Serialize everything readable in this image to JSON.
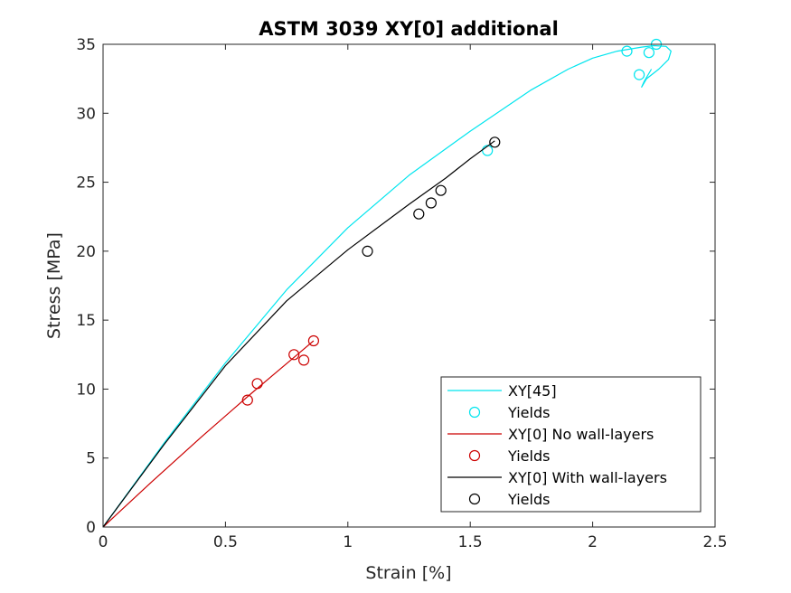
{
  "chart_data": {
    "type": "line",
    "title": "ASTM 3039 XY[0] additional",
    "xlabel": "Strain [%]",
    "ylabel": "Stress [MPa]",
    "xlim": [
      0,
      2.5
    ],
    "ylim": [
      0,
      35
    ],
    "xticks": [
      0,
      0.5,
      1,
      1.5,
      2,
      2.5
    ],
    "xtick_labels": [
      "0",
      "0.5",
      "1",
      "1.5",
      "2",
      "2.5"
    ],
    "yticks": [
      0,
      5,
      10,
      15,
      20,
      25,
      30,
      35
    ],
    "ytick_labels": [
      "0",
      "5",
      "10",
      "15",
      "20",
      "25",
      "30",
      "35"
    ],
    "grid": false,
    "legend_position": "bottom-right",
    "series": [
      {
        "name": "XY[45]",
        "kind": "line",
        "color": "#00e5ee",
        "x": [
          0,
          0.25,
          0.5,
          0.75,
          1.0,
          1.25,
          1.5,
          1.75,
          1.9,
          2.0,
          2.1,
          2.2,
          2.25,
          2.3,
          2.32,
          2.31,
          2.27,
          2.22,
          2.2,
          2.21,
          2.24
        ],
        "y": [
          0,
          6.1,
          11.9,
          17.2,
          21.7,
          25.5,
          28.7,
          31.7,
          33.2,
          34.0,
          34.5,
          34.8,
          34.9,
          34.85,
          34.5,
          33.9,
          33.2,
          32.5,
          31.9,
          32.3,
          33.2
        ]
      },
      {
        "name": "Yields",
        "kind": "scatter",
        "color": "#00e5ee",
        "x": [
          1.57,
          2.14,
          2.19,
          2.23,
          2.26
        ],
        "y": [
          27.3,
          34.5,
          32.8,
          34.4,
          35.0
        ]
      },
      {
        "name": "XY[0] No wall-layers",
        "kind": "line",
        "color": "#cc0000",
        "x": [
          0,
          0.2,
          0.4,
          0.6,
          0.7,
          0.8,
          0.86
        ],
        "y": [
          0,
          3.3,
          6.5,
          9.6,
          11.1,
          12.6,
          13.5
        ]
      },
      {
        "name": "Yields",
        "kind": "scatter",
        "color": "#cc0000",
        "x": [
          0.59,
          0.63,
          0.78,
          0.82,
          0.86
        ],
        "y": [
          9.2,
          10.4,
          12.5,
          12.1,
          13.5
        ]
      },
      {
        "name": "XY[0] With wall-layers",
        "kind": "line",
        "color": "#000000",
        "x": [
          0,
          0.25,
          0.5,
          0.75,
          1.0,
          1.25,
          1.4,
          1.5,
          1.6
        ],
        "y": [
          0,
          6.0,
          11.7,
          16.4,
          20.1,
          23.4,
          25.3,
          26.7,
          28.0
        ]
      },
      {
        "name": "Yields",
        "kind": "scatter",
        "color": "#000000",
        "x": [
          1.08,
          1.29,
          1.34,
          1.38,
          1.6
        ],
        "y": [
          20.0,
          22.7,
          23.5,
          24.4,
          27.9
        ]
      }
    ]
  }
}
